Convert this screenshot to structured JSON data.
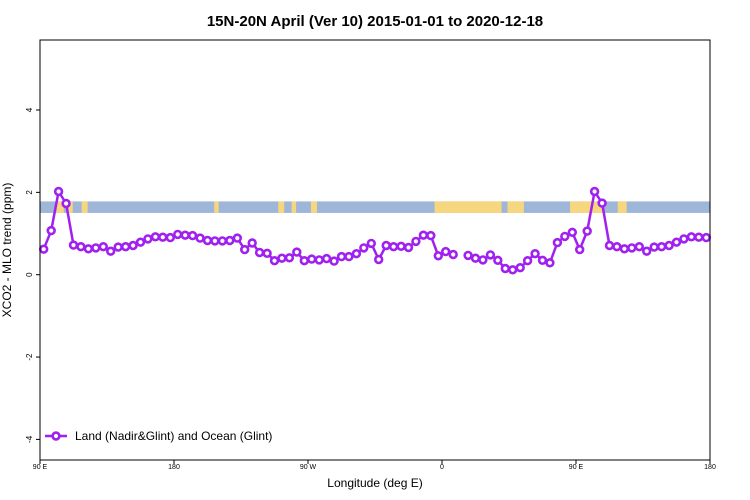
{
  "chart_data": {
    "type": "line",
    "title": "15N-20N April (Ver 10)   2015-01-01 to 2020-12-18",
    "xlabel": "Longitude (deg E)",
    "ylabel": "XCO2 - MLO trend (ppm)",
    "xlim": [
      90,
      540
    ],
    "ylim": [
      -4.5,
      5.7
    ],
    "x_ticks": [
      {
        "value": 90,
        "label": "90 E"
      },
      {
        "value": 180,
        "label": "180"
      },
      {
        "value": 270,
        "label": "90 W"
      },
      {
        "value": 360,
        "label": "0"
      },
      {
        "value": 450,
        "label": "90 E"
      },
      {
        "value": 540,
        "label": "180"
      }
    ],
    "y_ticks": [
      {
        "value": -4,
        "label": "-4"
      },
      {
        "value": -2,
        "label": "-2"
      },
      {
        "value": 0,
        "label": "0"
      },
      {
        "value": 2,
        "label": "2"
      },
      {
        "value": 4,
        "label": "4"
      }
    ],
    "grid": false,
    "legend": {
      "position": "bottom-left"
    },
    "series": [
      {
        "name": "Land (Nadir&Glint) and Ocean (Glint)",
        "color": "#a020f0",
        "points": [
          [
            92.5,
            0.62
          ],
          [
            97.5,
            1.07
          ],
          [
            102.5,
            2.02
          ],
          [
            107.5,
            1.73
          ],
          [
            112.5,
            0.72
          ],
          [
            117.5,
            0.68
          ],
          [
            122.5,
            0.63
          ],
          [
            127.5,
            0.65
          ],
          [
            132.5,
            0.68
          ],
          [
            137.5,
            0.57
          ],
          [
            142.5,
            0.67
          ],
          [
            147.5,
            0.68
          ],
          [
            152.5,
            0.71
          ],
          [
            157.5,
            0.79
          ],
          [
            162.5,
            0.87
          ],
          [
            167.5,
            0.92
          ],
          [
            172.5,
            0.91
          ],
          [
            177.5,
            0.9
          ],
          [
            182.5,
            0.98
          ],
          [
            187.5,
            0.96
          ],
          [
            192.5,
            0.95
          ],
          [
            197.5,
            0.89
          ],
          [
            202.5,
            0.83
          ],
          [
            207.5,
            0.82
          ],
          [
            212.5,
            0.82
          ],
          [
            217.5,
            0.83
          ],
          [
            222.5,
            0.89
          ],
          [
            227.5,
            0.61
          ],
          [
            232.5,
            0.77
          ],
          [
            237.5,
            0.54
          ],
          [
            242.5,
            0.52
          ],
          [
            247.5,
            0.34
          ],
          [
            252.5,
            0.4
          ],
          [
            257.5,
            0.41
          ],
          [
            262.5,
            0.55
          ],
          [
            267.5,
            0.34
          ],
          [
            272.5,
            0.38
          ],
          [
            277.5,
            0.36
          ],
          [
            282.5,
            0.39
          ],
          [
            287.5,
            0.33
          ],
          [
            292.5,
            0.44
          ],
          [
            297.5,
            0.44
          ],
          [
            302.5,
            0.51
          ],
          [
            307.5,
            0.65
          ],
          [
            312.5,
            0.76
          ],
          [
            317.5,
            0.37
          ],
          [
            322.5,
            0.71
          ],
          [
            327.5,
            0.68
          ],
          [
            332.5,
            0.69
          ],
          [
            337.5,
            0.66
          ],
          [
            342.5,
            0.81
          ],
          [
            347.5,
            0.96
          ],
          [
            352.5,
            0.95
          ],
          [
            357.5,
            0.46
          ],
          [
            362.5,
            0.56
          ],
          [
            367.5,
            0.49
          ],
          null,
          [
            377.5,
            0.47
          ],
          [
            382.5,
            0.4
          ],
          [
            387.5,
            0.36
          ],
          [
            392.5,
            0.48
          ],
          [
            397.5,
            0.35
          ],
          [
            402.5,
            0.15
          ],
          [
            407.5,
            0.12
          ],
          [
            412.5,
            0.17
          ],
          [
            417.5,
            0.34
          ],
          [
            422.5,
            0.51
          ],
          [
            427.5,
            0.35
          ],
          [
            432.5,
            0.29
          ],
          [
            437.5,
            0.78
          ],
          [
            442.5,
            0.93
          ],
          [
            447.5,
            1.03
          ],
          [
            452.5,
            0.61
          ],
          [
            457.5,
            1.06
          ],
          [
            462.5,
            2.02
          ],
          [
            467.5,
            1.74
          ],
          [
            472.5,
            0.71
          ],
          [
            477.5,
            0.68
          ],
          [
            482.5,
            0.63
          ],
          [
            487.5,
            0.65
          ],
          [
            492.5,
            0.68
          ],
          [
            497.5,
            0.57
          ],
          [
            502.5,
            0.67
          ],
          [
            507.5,
            0.68
          ],
          [
            512.5,
            0.71
          ],
          [
            517.5,
            0.79
          ],
          [
            522.5,
            0.87
          ],
          [
            527.5,
            0.92
          ],
          [
            532.5,
            0.91
          ],
          [
            537.5,
            0.9
          ]
        ]
      }
    ],
    "land_ocean_strip": {
      "y_range": [
        1.5,
        1.78
      ],
      "ocean_color": "#9eb6d8",
      "land_color": "#f6d77f",
      "land_spans": [
        [
          101,
          106
        ],
        [
          109,
          112
        ],
        [
          118,
          122
        ],
        [
          207,
          210
        ],
        [
          250,
          254
        ],
        [
          259,
          262
        ],
        [
          272,
          276
        ],
        [
          355,
          400
        ],
        [
          404,
          415
        ],
        [
          446,
          468
        ],
        [
          478,
          484
        ]
      ]
    }
  }
}
